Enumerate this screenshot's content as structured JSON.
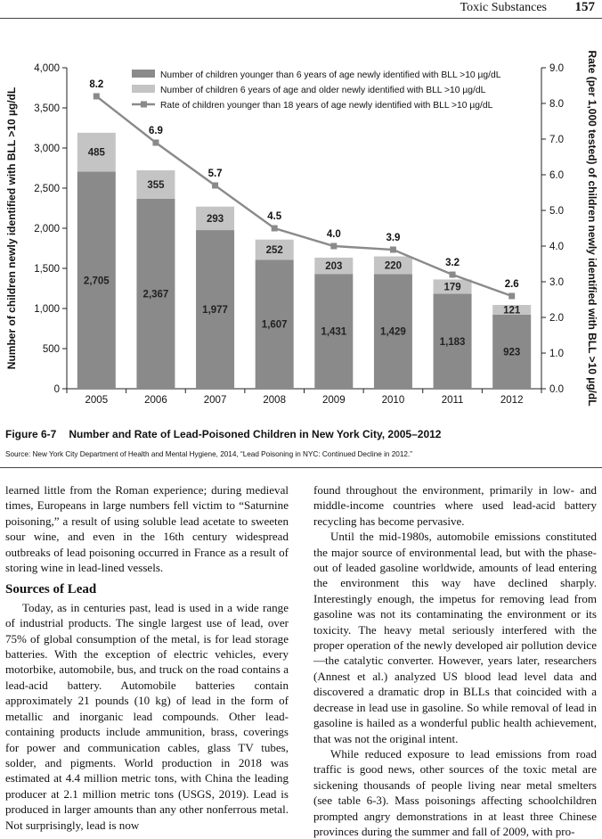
{
  "running_head": {
    "title": "Toxic Substances",
    "page": "157"
  },
  "figure": {
    "number": "Figure 6-7",
    "title": "Number and Rate of Lead-Poisoned Children in New York City, 2005–2012",
    "source": "Source: New York City Department of Health and Mental Hygiene, 2014, “Lead Poisoning in NYC: Continued Decline in 2012.”"
  },
  "chart_data": {
    "type": "bar",
    "stacked": true,
    "categories": [
      "2005",
      "2006",
      "2007",
      "2008",
      "2009",
      "2010",
      "2011",
      "2012"
    ],
    "series": [
      {
        "name": "Number of children  younger than 6 years of age newly identified with BLL >10 µg/dL",
        "values": [
          2705,
          2367,
          1977,
          1607,
          1431,
          1429,
          1183,
          923
        ],
        "labels": [
          "2,705",
          "2,367",
          "1,977",
          "1,607",
          "1,431",
          "1,429",
          "1,183",
          "923"
        ],
        "color": "#8a8a8a",
        "axis": "left"
      },
      {
        "name": "Number of children  6 years of age and older newly identified with BLL >10 µg/dL",
        "values": [
          485,
          355,
          293,
          252,
          203,
          220,
          179,
          121
        ],
        "labels": [
          "485",
          "355",
          "293",
          "252",
          "203",
          "220",
          "179",
          "121"
        ],
        "color": "#c4c4c4",
        "axis": "left"
      },
      {
        "name": "Rate of children  younger than 18 years of age newly identified with BLL >10 µg/dL",
        "type": "line",
        "values": [
          8.2,
          6.9,
          5.7,
          4.5,
          4.0,
          3.9,
          3.2,
          2.6
        ],
        "labels": [
          "8.2",
          "6.9",
          "5.7",
          "4.5",
          "4.0",
          "3.9",
          "3.2",
          "2.6"
        ],
        "color": "#8a8a8a",
        "axis": "right"
      }
    ],
    "y_left": {
      "label": "Number of children newly identified with BLL >10 µg/dL",
      "ylim": [
        0,
        4000
      ],
      "ticks": [
        "0",
        "500",
        "1,000",
        "1,500",
        "2,000",
        "2,500",
        "3,000",
        "3,500",
        "4,000"
      ]
    },
    "y_right": {
      "label": "Rate (per 1,000 tested) of children  newly identified with BLL >10 µg/dL",
      "ylim": [
        0,
        9
      ],
      "ticks": [
        "0.0",
        "1.0",
        "2.0",
        "3.0",
        "4.0",
        "5.0",
        "6.0",
        "7.0",
        "8.0",
        "9.0"
      ]
    },
    "grid": false,
    "legend": "top"
  },
  "text": {
    "left_intro": "learned little from the Roman experience; during medieval times, Europeans in large numbers fell victim to “Saturnine poisoning,” a result of using soluble lead acetate to sweeten sour wine, and even in the 16th century widespread outbreaks of lead poisoning occurred in France as a result of storing wine in lead-lined vessels.",
    "heading": "Sources of Lead",
    "left_para": "Today, as in centuries past, lead is used in a wide range of industrial products. The single largest use of lead, over 75% of global consumption of the metal, is for lead storage batteries. With the exception of electric vehicles, every motorbike, automobile, bus, and truck on the road contains a lead-acid battery. Automobile batteries contain approximately 21 pounds (10 kg) of lead in the form of metallic and inorganic lead compounds. Other lead-containing products include ammunition, brass, coverings for power and communication cables, glass TV tubes, solder, and pigments. World production in 2018 was estimated at 4.4 million metric tons, with China the leading producer at 2.1 million metric tons (USGS, 2019). Lead is produced in larger amounts than any other nonferrous metal. Not surprisingly, lead is now",
    "right_p1": "found throughout the environment, primarily in low- and middle-income countries where used lead-acid battery recycling has become pervasive.",
    "right_p2": "Until the mid-1980s, automobile emissions constituted the major source of environmental lead, but with the phase-out of leaded gasoline worldwide, amounts of lead entering the environment this way have declined sharply. Interestingly enough, the impetus for removing lead from gasoline was not its contaminating the environment or its toxicity. The heavy metal seriously interfered with the proper operation of the newly developed air pollution device—the catalytic converter. However, years later, researchers (Annest et al.) analyzed US blood lead level data and discovered a dramatic drop in BLLs that coincided with a decrease in lead use in gasoline. So while removal of lead in gasoline is hailed as a wonderful public health achievement, that was not the original intent.",
    "right_p3": "While reduced exposure to lead emissions from road traffic is good news, other sources of the toxic metal are sickening thousands of people living near metal smelters (see table 6-3). Mass poisonings affecting schoolchildren prompted angry demonstrations in at least three Chinese provinces during the summer and fall of 2009, with pro-"
  }
}
